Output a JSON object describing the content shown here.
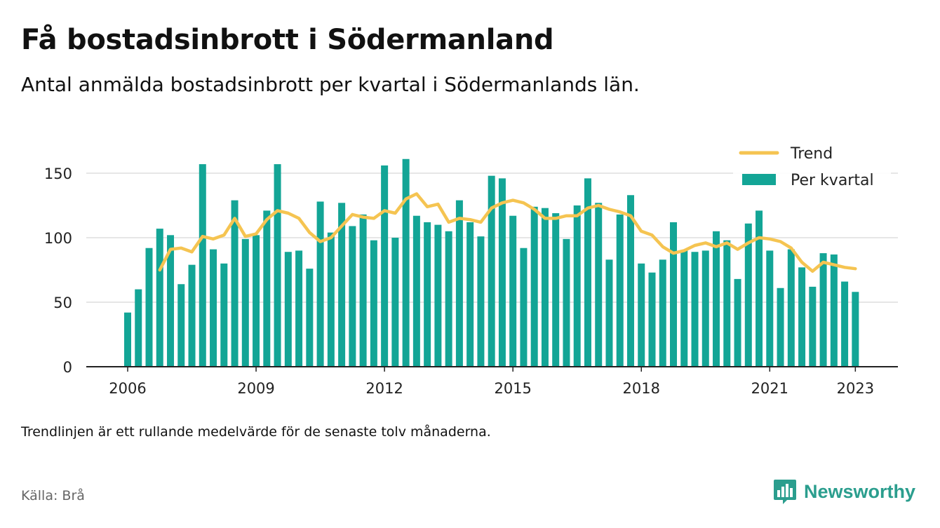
{
  "title": "Få bostadsinbrott i Södermanland",
  "subtitle": "Antal anmälda bostadsinbrott per kvartal i Södermanlands län.",
  "footnote": "Trendlinjen är ett rullande medelvärde för de senaste tolv månaderna.",
  "source": "Källa: Brå",
  "brand": {
    "name": "Newsworthy",
    "color": "#2b9e8e",
    "icon": "bar-chart-speech-bubble-icon"
  },
  "colors": {
    "bar": "#13a596",
    "trend": "#f5c451",
    "grid": "#dddddd",
    "axis": "#222222"
  },
  "chart_data": {
    "type": "bar",
    "x_tick_labels": [
      "2006",
      "2009",
      "2012",
      "2015",
      "2018",
      "2021",
      "2023"
    ],
    "y_tick_labels": [
      "0",
      "50",
      "100",
      "150"
    ],
    "ylim": [
      0,
      175
    ],
    "grid": true,
    "legend_position": "top-right",
    "series": [
      {
        "name": "Per kvartal",
        "type": "bar",
        "start_year": 2006,
        "values": [
          42,
          60,
          92,
          107,
          102,
          64,
          79,
          157,
          91,
          80,
          129,
          99,
          102,
          121,
          157,
          89,
          90,
          76,
          128,
          104,
          127,
          109,
          118,
          98,
          156,
          100,
          161,
          117,
          112,
          110,
          105,
          129,
          112,
          101,
          148,
          146,
          117,
          92,
          124,
          123,
          119,
          99,
          125,
          146,
          127,
          83,
          118,
          133,
          80,
          73,
          83,
          112,
          90,
          89,
          90,
          105,
          98,
          68,
          111,
          121,
          90,
          61,
          91,
          77,
          62,
          88,
          87,
          66,
          58
        ]
      },
      {
        "name": "Trend",
        "type": "line",
        "start_index": 3,
        "values": [
          75,
          91,
          92,
          89,
          101,
          99,
          102,
          115,
          101,
          103,
          114,
          121,
          119,
          115,
          104,
          97,
          100,
          109,
          118,
          116,
          115,
          121,
          119,
          130,
          134,
          124,
          126,
          112,
          115,
          114,
          112,
          123,
          127,
          129,
          127,
          122,
          115,
          115,
          117,
          117,
          123,
          125,
          122,
          120,
          117,
          105,
          102,
          93,
          88,
          90,
          94,
          96,
          93,
          96,
          91,
          96,
          100,
          99,
          97,
          92,
          81,
          74,
          81,
          79,
          77,
          76
        ]
      }
    ]
  }
}
